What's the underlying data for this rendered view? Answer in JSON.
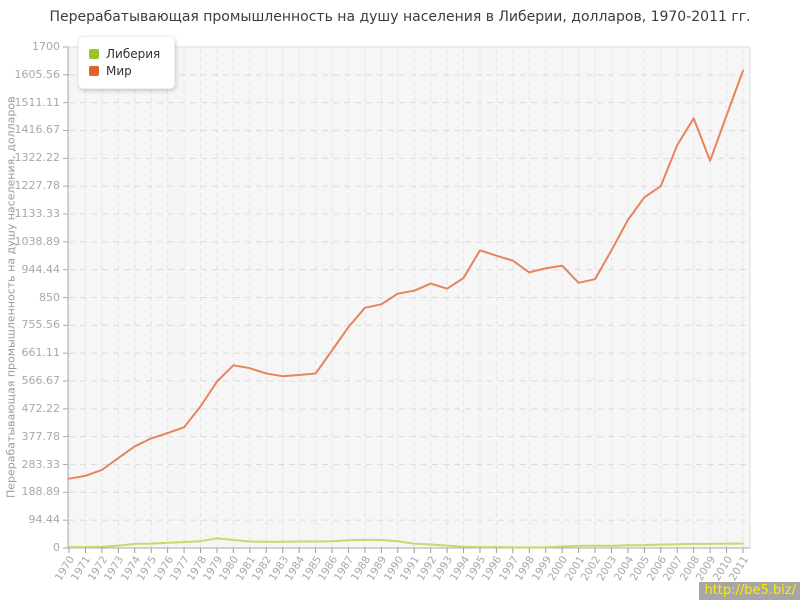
{
  "title": "Перерабатывающая промышленность на душу населения в Либерии, долларов, 1970-2011 гг.",
  "y_axis_title": "Перерабатывающая промышленность на душу населения, долларов",
  "watermark_text": "http://be5.biz/",
  "colors": {
    "liberia_line": "#c1dc68",
    "world_line": "#e8845c",
    "liberia_marker": "#9ac526",
    "world_marker": "#df622c",
    "plot_background": "#f6f6f6",
    "grid_horizontal": "#dcdcdc",
    "grid_vertical": "#e2e2e2",
    "axis": "#aaaaaa",
    "tick_text": "#a8a8a8",
    "title_text": "#3c3c3c"
  },
  "legend": {
    "items": [
      {
        "label": "Либерия",
        "color": "#9ac526"
      },
      {
        "label": "Мир",
        "color": "#df622c"
      }
    ]
  },
  "chart_data": {
    "type": "line",
    "title": "Перерабатывающая промышленность на душу населения в Либерии, долларов, 1970-2011 гг.",
    "xlabel": "",
    "ylabel": "Перерабатывающая промышленность на душу населения, долларов",
    "ylim": [
      0,
      1700
    ],
    "grid": true,
    "legend_position": "top-left",
    "ytick_labels": [
      "0",
      "94.44",
      "188.89",
      "283.33",
      "377.78",
      "472.22",
      "566.67",
      "661.11",
      "755.56",
      "850",
      "944.44",
      "1038.89",
      "1133.33",
      "1227.78",
      "1322.22",
      "1416.67",
      "1511.11",
      "1605.56",
      "1700"
    ],
    "x": [
      1970,
      1971,
      1972,
      1973,
      1974,
      1975,
      1976,
      1977,
      1978,
      1979,
      1980,
      1981,
      1982,
      1983,
      1984,
      1985,
      1986,
      1987,
      1988,
      1989,
      1990,
      1991,
      1992,
      1993,
      1994,
      1995,
      1996,
      1997,
      1998,
      1999,
      2000,
      2001,
      2002,
      2003,
      2004,
      2005,
      2006,
      2007,
      2008,
      2009,
      2010,
      2011
    ],
    "series": [
      {
        "name": "Либерия",
        "color": "#c1dc68",
        "values": [
          3,
          3,
          4,
          8,
          14,
          15,
          18,
          20,
          23,
          33,
          27,
          22,
          21,
          21,
          22,
          22,
          23,
          26,
          28,
          27,
          23,
          15,
          12,
          8,
          4,
          3,
          3,
          2,
          2,
          2,
          5,
          7,
          8,
          7,
          9,
          10,
          12,
          13,
          14,
          14,
          15,
          15
        ]
      },
      {
        "name": "Мир",
        "color": "#e8845c",
        "values": [
          235,
          245,
          265,
          305,
          345,
          372,
          390,
          410,
          480,
          565,
          620,
          610,
          592,
          583,
          587,
          592,
          670,
          750,
          815,
          827,
          863,
          873,
          897,
          880,
          916,
          1010,
          992,
          975,
          935,
          949,
          958,
          900,
          912,
          1010,
          1113,
          1190,
          1228,
          1367,
          1458,
          1314,
          1468,
          1620
        ]
      }
    ]
  }
}
